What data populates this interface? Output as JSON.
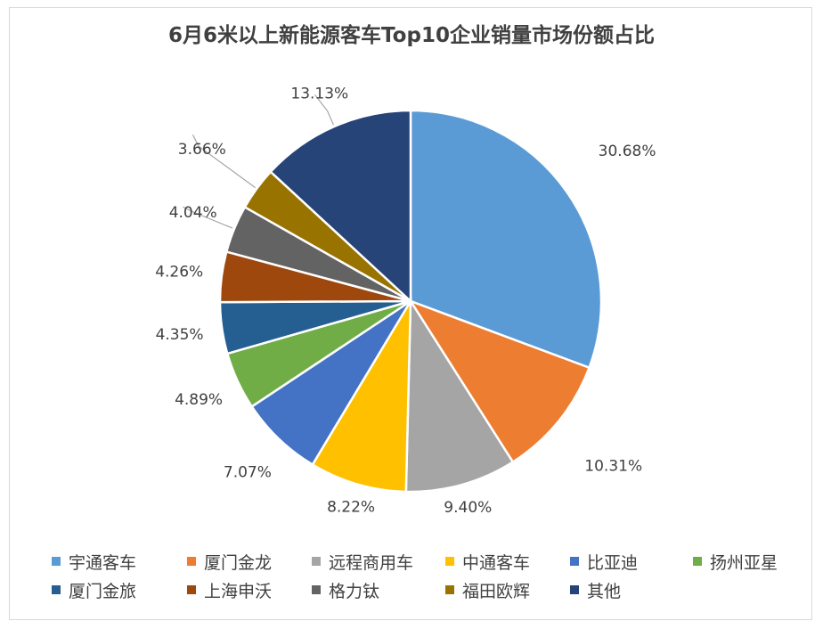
{
  "chart_data": {
    "type": "pie",
    "title": "6月6米以上新能源客车Top10企业销量市场份额占比",
    "unit": "%",
    "categories": [
      "宇通客车",
      "厦门金龙",
      "远程商用车",
      "中通客车",
      "比亚迪",
      "扬州亚星",
      "厦门金旅",
      "上海申沃",
      "格力钛",
      "福田欧辉",
      "其他"
    ],
    "values": [
      30.68,
      10.31,
      9.4,
      8.22,
      7.07,
      4.89,
      4.35,
      4.26,
      4.04,
      3.66,
      13.13
    ],
    "labels": [
      "30.68%",
      "10.31%",
      "9.40%",
      "8.22%",
      "7.07%",
      "4.89%",
      "4.35%",
      "4.26%",
      "4.04%",
      "3.66%",
      "13.13%"
    ],
    "colors": [
      "#5b9bd5",
      "#ed7d31",
      "#a5a5a5",
      "#ffc000",
      "#4472c4",
      "#70ad47",
      "#255e91",
      "#9e480e",
      "#636363",
      "#997300",
      "#264478"
    ],
    "legend_position": "bottom",
    "start_angle": "12 o'clock",
    "direction": "clockwise"
  }
}
